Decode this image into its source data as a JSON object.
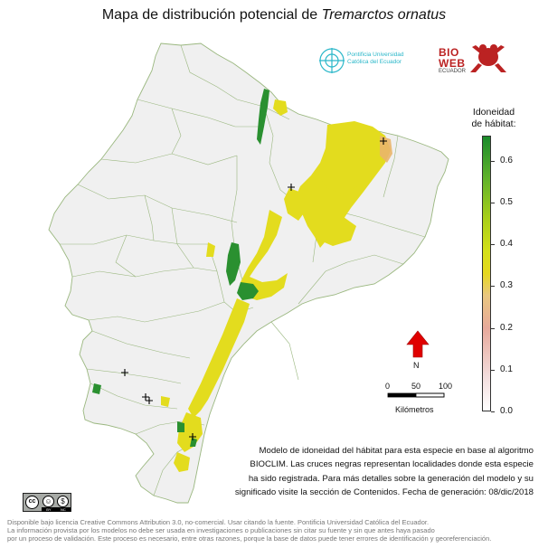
{
  "title": {
    "prefix": "Mapa de distribución potencial de ",
    "species": "Tremarctos ornatus"
  },
  "logos": {
    "puce_line1": "Pontificia Universidad",
    "puce_line2": "Católica del Ecuador",
    "bioweb_line1": "BIO",
    "bioweb_line2": "WEB",
    "bioweb_line3": "ECUADOR"
  },
  "legend": {
    "title_line1": "Idoneidad",
    "title_line2": "de hábitat:",
    "ticks": [
      "0.6",
      "0.5",
      "0.4",
      "0.3",
      "0.2",
      "0.1",
      "0.0"
    ],
    "tick_values": [
      0.6,
      0.5,
      0.4,
      0.3,
      0.2,
      0.1,
      0.0
    ],
    "range": [
      0.0,
      0.66
    ],
    "colors": [
      "#ffffff",
      "#e7a99b",
      "#e6d81f",
      "#a9cf1a",
      "#1a8a2b"
    ]
  },
  "north_arrow": {
    "label": "N",
    "color": "#e00000"
  },
  "scale_bar": {
    "labels": [
      "0",
      "50",
      "100"
    ],
    "title": "Kilómetros"
  },
  "description": {
    "line1": "Modelo de idoneidad del hábitat para esta especie en base al algoritmo",
    "line2": "BIOCLIM. Las cruces negras representan localidades donde esta especie",
    "line3": "ha sido registrada. Para más detalles sobre la generación del modelo y su",
    "line4": "significado visite la sección de Contenidos. Fecha de generación: 08/dic/2018"
  },
  "license_badge": {
    "cc": "cc",
    "by": "BY",
    "nc": "NC"
  },
  "footer": {
    "line1": "Disponible bajo licencia Creative Commons Attribution 3.0, no-comercial. Usar citando la fuente. Pontificia Universidad Católica del Ecuador.",
    "line2": "La información provista por los modelos no debe ser usada en investigaciones o publicaciones sin citar su fuente y sin que antes haya pasado",
    "line3": "por un proceso de validación. Este proceso es necesario, entre otras razones, porque la base de datos puede tener errores de identificación y georeferenciación."
  },
  "map": {
    "land_color": "#f0f0f0",
    "border_color": "#9ab77f",
    "habitat_yellow": "#e3dc1e",
    "habitat_green": "#2a9030",
    "records_count": 6
  }
}
